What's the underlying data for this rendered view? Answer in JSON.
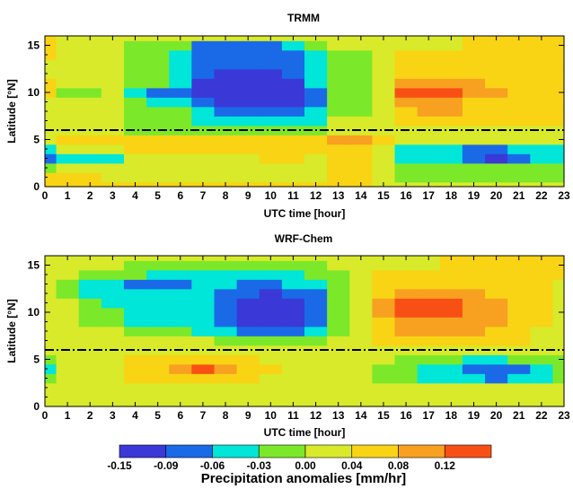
{
  "chart_data": [
    {
      "type": "heatmap",
      "title": "TRMM",
      "xlabel": "UTC time [hour]",
      "ylabel": "Latitude [°N]",
      "xlim": [
        0,
        23
      ],
      "ylim": [
        0,
        16
      ],
      "xticks": [
        "0",
        "1",
        "2",
        "3",
        "4",
        "5",
        "6",
        "7",
        "8",
        "9",
        "10",
        "11",
        "12",
        "13",
        "14",
        "15",
        "16",
        "17",
        "18",
        "19",
        "20",
        "21",
        "22",
        "23"
      ],
      "yticks": [
        "0",
        "5",
        "10",
        "15"
      ],
      "reference_line_latitude": 6,
      "x": [
        0,
        1,
        2,
        3,
        4,
        5,
        6,
        7,
        8,
        9,
        10,
        11,
        12,
        13,
        14,
        15,
        16,
        17,
        18,
        19,
        20,
        21,
        22,
        23
      ],
      "y": [
        0,
        1,
        2,
        3,
        4,
        5,
        6,
        7,
        8,
        9,
        10,
        11,
        12,
        13,
        14,
        15,
        16
      ],
      "z": [
        [
          0.04,
          0.04,
          0.04,
          0.04,
          0.04,
          0.04,
          0.04,
          0.04,
          0.04,
          0.04,
          0.04,
          0.04,
          0.04,
          0.04,
          0.04,
          0.0,
          0.0,
          0.0,
          0.0,
          0.0,
          0.0,
          0.0,
          0.0,
          0.0
        ],
        [
          0.04,
          0.04,
          0.04,
          0.02,
          0.02,
          0.02,
          0.02,
          0.02,
          0.02,
          0.02,
          0.02,
          0.02,
          0.02,
          0.04,
          0.04,
          0.02,
          -0.01,
          -0.01,
          -0.01,
          -0.01,
          -0.01,
          -0.01,
          -0.01,
          -0.01
        ],
        [
          -0.01,
          0.02,
          0.02,
          0.02,
          0.0,
          0.0,
          0.0,
          0.02,
          0.02,
          0.02,
          0.02,
          0.02,
          0.02,
          0.04,
          0.04,
          0.02,
          -0.03,
          -0.03,
          -0.03,
          -0.03,
          -0.03,
          -0.03,
          -0.03,
          -0.03
        ],
        [
          -0.08,
          -0.04,
          -0.04,
          -0.04,
          0.0,
          0.0,
          0.02,
          0.02,
          0.02,
          0.02,
          0.06,
          0.06,
          0.02,
          0.04,
          0.04,
          0.02,
          -0.06,
          -0.06,
          -0.06,
          -0.08,
          -0.11,
          -0.08,
          -0.06,
          -0.06
        ],
        [
          -0.04,
          0.02,
          0.02,
          0.02,
          0.04,
          0.04,
          0.04,
          0.05,
          0.05,
          0.04,
          0.04,
          0.04,
          0.04,
          0.04,
          0.04,
          0.02,
          -0.05,
          -0.06,
          -0.06,
          -0.07,
          -0.08,
          -0.06,
          -0.05,
          -0.06
        ],
        [
          0.02,
          0.04,
          0.04,
          0.04,
          0.04,
          0.04,
          0.04,
          0.04,
          0.04,
          0.04,
          0.04,
          0.04,
          0.04,
          0.09,
          0.09,
          0.06,
          0.02,
          0.02,
          0.02,
          0.02,
          0.02,
          0.02,
          0.02,
          0.02
        ],
        [
          0.02,
          0.03,
          0.03,
          0.01,
          -0.01,
          -0.01,
          -0.01,
          -0.02,
          -0.02,
          -0.02,
          -0.02,
          -0.02,
          -0.02,
          0.02,
          0.02,
          0.02,
          0.02,
          0.02,
          0.02,
          0.02,
          0.02,
          0.02,
          0.02,
          0.02
        ],
        [
          0.02,
          0.02,
          0.02,
          0.0,
          -0.02,
          -0.02,
          -0.01,
          -0.04,
          -0.05,
          -0.05,
          -0.05,
          -0.05,
          -0.04,
          0.0,
          0.0,
          0.02,
          0.04,
          0.04,
          0.04,
          0.04,
          0.04,
          0.04,
          0.04,
          0.04
        ],
        [
          0.02,
          0.02,
          0.02,
          0.0,
          -0.02,
          -0.02,
          -0.01,
          -0.06,
          -0.08,
          -0.08,
          -0.08,
          -0.08,
          -0.06,
          -0.01,
          -0.01,
          0.02,
          0.06,
          0.08,
          0.08,
          0.06,
          0.06,
          0.05,
          0.05,
          0.05
        ],
        [
          0.02,
          0.02,
          0.02,
          0.02,
          -0.02,
          -0.04,
          -0.04,
          -0.09,
          -0.11,
          -0.11,
          -0.11,
          -0.11,
          -0.08,
          -0.02,
          -0.02,
          0.02,
          0.08,
          0.09,
          0.09,
          0.07,
          0.07,
          0.06,
          0.06,
          0.06
        ],
        [
          0.04,
          -0.01,
          -0.01,
          0.01,
          -0.05,
          -0.08,
          -0.08,
          -0.1,
          -0.12,
          -0.12,
          -0.12,
          -0.12,
          -0.08,
          -0.02,
          -0.02,
          0.02,
          0.13,
          0.13,
          0.13,
          0.08,
          0.08,
          0.07,
          0.07,
          0.07
        ],
        [
          0.04,
          0.01,
          0.01,
          0.01,
          -0.03,
          -0.03,
          -0.06,
          -0.1,
          -0.12,
          -0.12,
          -0.12,
          -0.11,
          -0.06,
          -0.02,
          -0.02,
          0.02,
          0.09,
          0.1,
          0.09,
          0.08,
          0.07,
          0.06,
          0.06,
          0.06
        ],
        [
          0.03,
          0.03,
          0.03,
          0.03,
          -0.01,
          -0.01,
          -0.06,
          -0.08,
          -0.1,
          -0.1,
          -0.1,
          -0.09,
          -0.05,
          -0.01,
          -0.01,
          0.02,
          0.06,
          0.07,
          0.07,
          0.07,
          0.06,
          0.06,
          0.06,
          0.06
        ],
        [
          0.02,
          0.02,
          0.02,
          0.02,
          -0.01,
          -0.01,
          -0.05,
          -0.08,
          -0.09,
          -0.09,
          -0.09,
          -0.08,
          -0.04,
          -0.03,
          -0.03,
          0.02,
          0.05,
          0.05,
          0.05,
          0.06,
          0.06,
          0.05,
          0.05,
          0.05
        ],
        [
          0.04,
          0.02,
          0.02,
          0.02,
          -0.01,
          -0.02,
          -0.05,
          -0.08,
          -0.09,
          -0.09,
          -0.09,
          -0.08,
          -0.04,
          -0.01,
          -0.01,
          0.02,
          0.04,
          0.04,
          0.04,
          0.05,
          0.05,
          0.05,
          0.05,
          0.05
        ],
        [
          0.05,
          0.02,
          0.02,
          0.02,
          -0.01,
          -0.02,
          -0.03,
          -0.07,
          -0.07,
          -0.07,
          -0.07,
          -0.05,
          -0.02,
          0.0,
          0.0,
          0.02,
          0.03,
          0.03,
          0.03,
          0.04,
          0.06,
          0.06,
          0.06,
          0.06
        ],
        [
          0.05,
          0.02,
          0.02,
          0.02,
          0.0,
          0.0,
          0.0,
          0.0,
          0.0,
          0.0,
          0.0,
          0.0,
          0.0,
          0.0,
          0.0,
          0.02,
          0.03,
          0.03,
          0.03,
          0.04,
          0.04,
          0.04,
          0.04,
          0.04
        ]
      ]
    },
    {
      "type": "heatmap",
      "title": "WRF-Chem",
      "xlabel": "UTC time [hour]",
      "ylabel": "Latitude [°N]",
      "xlim": [
        0,
        23
      ],
      "ylim": [
        0,
        16
      ],
      "xticks": [
        "0",
        "1",
        "2",
        "3",
        "4",
        "5",
        "6",
        "7",
        "8",
        "9",
        "10",
        "11",
        "12",
        "13",
        "14",
        "15",
        "16",
        "17",
        "18",
        "19",
        "20",
        "21",
        "22",
        "23"
      ],
      "yticks": [
        "0",
        "5",
        "10",
        "15"
      ],
      "reference_line_latitude": 6,
      "x": [
        0,
        1,
        2,
        3,
        4,
        5,
        6,
        7,
        8,
        9,
        10,
        11,
        12,
        13,
        14,
        15,
        16,
        17,
        18,
        19,
        20,
        21,
        22,
        23
      ],
      "y": [
        0,
        1,
        2,
        3,
        4,
        5,
        6,
        7,
        8,
        9,
        10,
        11,
        12,
        13,
        14,
        15,
        16
      ],
      "z": [
        [
          0.0,
          0.0,
          0.0,
          0.0,
          0.0,
          0.0,
          0.0,
          0.0,
          0.0,
          0.0,
          0.0,
          0.0,
          0.0,
          0.0,
          0.0,
          0.0,
          0.0,
          0.0,
          0.0,
          0.0,
          0.0,
          0.0,
          0.0,
          0.0
        ],
        [
          0.02,
          0.02,
          0.02,
          0.02,
          0.02,
          0.02,
          0.02,
          0.02,
          0.02,
          0.02,
          0.02,
          0.02,
          0.02,
          0.0,
          0.0,
          0.0,
          0.0,
          0.0,
          0.0,
          0.0,
          0.0,
          0.0,
          0.0,
          0.0
        ],
        [
          0.02,
          0.02,
          0.02,
          0.02,
          0.02,
          0.02,
          0.02,
          0.02,
          0.02,
          0.02,
          0.02,
          0.02,
          0.02,
          0.0,
          0.0,
          0.0,
          0.0,
          0.0,
          0.0,
          0.0,
          0.0,
          0.0,
          0.0,
          0.0
        ],
        [
          -0.01,
          0.02,
          0.02,
          0.02,
          0.04,
          0.05,
          0.06,
          0.07,
          0.05,
          0.04,
          0.03,
          0.02,
          0.02,
          0.02,
          0.0,
          -0.01,
          -0.02,
          -0.04,
          -0.05,
          -0.06,
          -0.07,
          -0.06,
          -0.05,
          -0.02
        ],
        [
          -0.04,
          0.02,
          0.02,
          0.03,
          0.05,
          0.07,
          0.1,
          0.13,
          0.09,
          0.06,
          0.04,
          0.03,
          0.02,
          0.02,
          0.0,
          -0.01,
          -0.02,
          -0.04,
          -0.06,
          -0.08,
          -0.09,
          -0.08,
          -0.05,
          -0.02
        ],
        [
          -0.03,
          0.02,
          0.02,
          0.02,
          0.04,
          0.05,
          0.06,
          0.07,
          0.05,
          0.04,
          0.03,
          0.02,
          0.02,
          0.01,
          0.0,
          0.0,
          -0.01,
          -0.02,
          -0.03,
          -0.04,
          -0.04,
          -0.03,
          -0.02,
          -0.01
        ],
        [
          0.02,
          0.02,
          0.02,
          0.02,
          0.02,
          0.02,
          0.02,
          0.02,
          0.02,
          0.02,
          0.02,
          0.02,
          0.02,
          0.02,
          0.02,
          0.02,
          0.02,
          0.02,
          0.02,
          0.02,
          0.02,
          0.02,
          0.02,
          0.02
        ],
        [
          0.02,
          0.02,
          0.02,
          0.02,
          0.02,
          0.02,
          0.02,
          0.0,
          -0.01,
          -0.02,
          -0.02,
          -0.02,
          -0.01,
          0.02,
          0.02,
          0.04,
          0.06,
          0.06,
          0.06,
          0.06,
          0.04,
          0.04,
          0.02,
          0.02
        ],
        [
          0.02,
          0.02,
          0.02,
          0.0,
          -0.02,
          -0.02,
          -0.03,
          -0.04,
          -0.06,
          -0.07,
          -0.08,
          -0.08,
          -0.06,
          -0.01,
          0.02,
          0.05,
          0.08,
          0.09,
          0.09,
          0.08,
          0.06,
          0.05,
          0.03,
          0.02
        ],
        [
          0.02,
          0.0,
          -0.01,
          -0.03,
          -0.05,
          -0.06,
          -0.06,
          -0.06,
          -0.08,
          -0.1,
          -0.11,
          -0.11,
          -0.08,
          -0.02,
          0.02,
          0.06,
          0.1,
          0.1,
          0.1,
          0.09,
          0.08,
          0.06,
          0.04,
          0.02
        ],
        [
          0.02,
          0.0,
          -0.01,
          -0.03,
          -0.05,
          -0.06,
          -0.06,
          -0.06,
          -0.08,
          -0.1,
          -0.12,
          -0.11,
          -0.08,
          -0.02,
          0.02,
          0.08,
          0.12,
          0.12,
          0.12,
          0.1,
          0.09,
          0.07,
          0.04,
          0.02
        ],
        [
          0.02,
          0.0,
          -0.02,
          -0.04,
          -0.05,
          -0.05,
          -0.05,
          -0.06,
          -0.08,
          -0.1,
          -0.12,
          -0.11,
          -0.08,
          -0.02,
          0.02,
          0.08,
          0.12,
          0.13,
          0.12,
          0.1,
          0.08,
          0.06,
          0.04,
          0.02
        ],
        [
          0.02,
          -0.02,
          -0.04,
          -0.05,
          -0.06,
          -0.06,
          -0.06,
          -0.06,
          -0.08,
          -0.09,
          -0.1,
          -0.09,
          -0.07,
          -0.02,
          0.02,
          0.07,
          0.1,
          0.11,
          0.1,
          0.09,
          0.07,
          0.05,
          0.04,
          0.02
        ],
        [
          0.02,
          -0.02,
          -0.04,
          -0.05,
          -0.07,
          -0.09,
          -0.08,
          -0.06,
          -0.06,
          -0.07,
          -0.07,
          -0.06,
          -0.05,
          -0.02,
          0.02,
          0.05,
          0.07,
          0.07,
          0.07,
          0.06,
          0.05,
          0.04,
          0.04,
          0.02
        ],
        [
          0.02,
          0.0,
          -0.01,
          -0.02,
          -0.03,
          -0.04,
          -0.04,
          -0.04,
          -0.04,
          -0.04,
          -0.04,
          -0.04,
          -0.03,
          -0.01,
          0.02,
          0.04,
          0.04,
          0.04,
          0.04,
          0.04,
          0.04,
          0.04,
          0.04,
          0.04
        ],
        [
          0.02,
          0.02,
          0.02,
          0.0,
          -0.01,
          -0.02,
          -0.02,
          -0.02,
          -0.02,
          -0.02,
          -0.02,
          -0.02,
          -0.01,
          0.0,
          0.02,
          0.02,
          0.02,
          0.03,
          0.04,
          0.04,
          0.04,
          0.04,
          0.04,
          0.04
        ],
        [
          0.02,
          0.02,
          0.02,
          0.02,
          0.0,
          0.0,
          0.0,
          0.0,
          0.0,
          0.0,
          0.0,
          0.0,
          0.0,
          0.0,
          0.02,
          0.02,
          0.02,
          0.02,
          0.04,
          0.04,
          0.04,
          0.04,
          0.04,
          0.04
        ]
      ]
    }
  ],
  "colorbar": {
    "label": "Precipitation anomalies [mm/hr]",
    "tick_labels": [
      "-0.15",
      "-0.09",
      "-0.06",
      "-0.03",
      "0.00",
      "0.04",
      "0.08",
      "0.12"
    ],
    "levels": [
      -0.15,
      -0.09,
      -0.06,
      -0.03,
      0.0,
      0.04,
      0.08,
      0.12,
      0.16
    ],
    "colors": [
      "#3b38d8",
      "#1a6ae8",
      "#00e6d8",
      "#7ce82a",
      "#d8ea2a",
      "#f8d414",
      "#f8a020",
      "#f85014"
    ]
  }
}
